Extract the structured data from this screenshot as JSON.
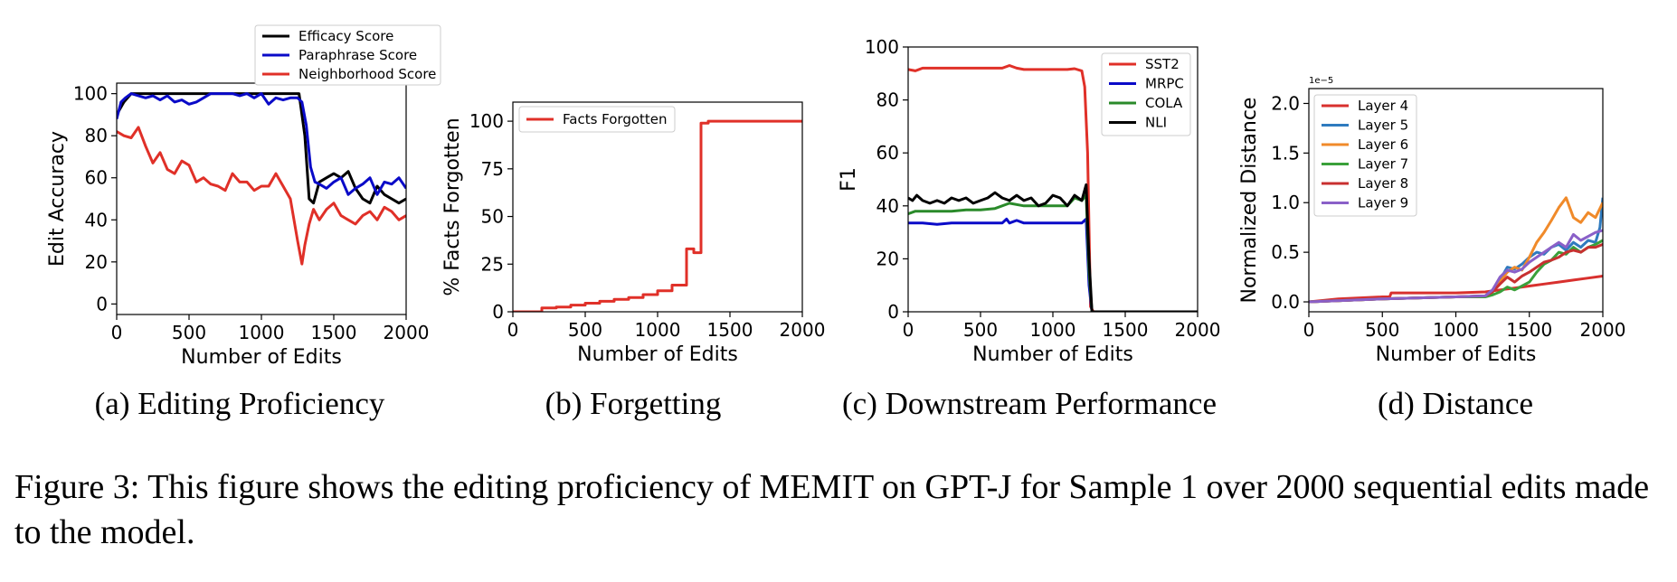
{
  "caption": "Figure 3: This figure shows the editing proficiency of MEMIT on GPT-J for Sample 1 over 2000 sequential edits made to the model.",
  "chart_data": [
    {
      "type": "line",
      "subcaption": "(a) Editing Proficiency",
      "xlabel": "Number of Edits",
      "ylabel": "Edit Accuracy",
      "xlim": [
        0,
        2000
      ],
      "ylim": [
        -5,
        105
      ],
      "xticks": [
        0,
        500,
        1000,
        1500,
        2000
      ],
      "yticks": [
        0,
        20,
        40,
        60,
        80,
        100
      ],
      "legend_position": "top-right (outside, above plot)",
      "legend": [
        "Efficacy Score",
        "Paraphrase Score",
        "Neighborhood Score"
      ],
      "colors": {
        "Efficacy Score": "#000000",
        "Paraphrase Score": "#0a0ac8",
        "Neighborhood Score": "#e03028"
      },
      "series": [
        {
          "name": "Efficacy Score",
          "color": "#000000",
          "x": [
            0,
            50,
            100,
            200,
            300,
            400,
            500,
            600,
            700,
            800,
            900,
            1000,
            1100,
            1200,
            1260,
            1300,
            1330,
            1360,
            1400,
            1450,
            1500,
            1550,
            1600,
            1650,
            1700,
            1750,
            1800,
            1850,
            1900,
            1950,
            2000
          ],
          "y": [
            90,
            96,
            100,
            100,
            100,
            100,
            100,
            100,
            100,
            100,
            100,
            100,
            100,
            100,
            100,
            80,
            50,
            48,
            58,
            60,
            62,
            60,
            63,
            55,
            50,
            48,
            56,
            52,
            50,
            48,
            50
          ]
        },
        {
          "name": "Paraphrase Score",
          "color": "#0a0ac8",
          "x": [
            0,
            30,
            60,
            100,
            150,
            200,
            250,
            300,
            350,
            400,
            450,
            500,
            550,
            600,
            650,
            700,
            750,
            800,
            850,
            900,
            950,
            1000,
            1050,
            1100,
            1150,
            1200,
            1250,
            1280,
            1310,
            1340,
            1370,
            1400,
            1450,
            1500,
            1550,
            1600,
            1650,
            1700,
            1750,
            1800,
            1850,
            1900,
            1950,
            2000
          ],
          "y": [
            88,
            96,
            98,
            100,
            99,
            98,
            99,
            97,
            99,
            96,
            97,
            95,
            96,
            98,
            100,
            100,
            100,
            100,
            99,
            100,
            98,
            100,
            95,
            98,
            97,
            98,
            98,
            96,
            85,
            65,
            58,
            57,
            55,
            58,
            60,
            52,
            55,
            57,
            60,
            52,
            58,
            57,
            60,
            55
          ]
        },
        {
          "name": "Neighborhood Score",
          "color": "#e03028",
          "x": [
            0,
            50,
            100,
            150,
            200,
            250,
            300,
            350,
            400,
            450,
            500,
            550,
            600,
            650,
            700,
            750,
            800,
            850,
            900,
            950,
            1000,
            1050,
            1100,
            1150,
            1200,
            1250,
            1280,
            1300,
            1330,
            1360,
            1400,
            1450,
            1500,
            1550,
            1600,
            1650,
            1700,
            1750,
            1800,
            1850,
            1900,
            1950,
            2000
          ],
          "y": [
            82,
            80,
            79,
            84,
            75,
            67,
            72,
            64,
            62,
            68,
            66,
            58,
            60,
            57,
            56,
            54,
            62,
            58,
            58,
            54,
            56,
            56,
            62,
            56,
            50,
            30,
            19,
            28,
            38,
            45,
            40,
            45,
            48,
            42,
            40,
            38,
            42,
            44,
            40,
            46,
            44,
            40,
            42
          ]
        }
      ]
    },
    {
      "type": "line",
      "subcaption": "(b) Forgetting",
      "xlabel": "Number of Edits",
      "ylabel": "% Facts Forgotten",
      "xlim": [
        0,
        2000
      ],
      "ylim": [
        0,
        110
      ],
      "xticks": [
        0,
        500,
        1000,
        1500,
        2000
      ],
      "yticks": [
        0,
        25,
        50,
        75,
        100
      ],
      "legend_position": "top-left",
      "legend": [
        "Facts Forgotten"
      ],
      "series": [
        {
          "name": "Facts Forgotten",
          "color": "#e03028",
          "x": [
            0,
            200,
            300,
            400,
            500,
            600,
            700,
            800,
            900,
            1000,
            1100,
            1200,
            1250,
            1300,
            1350,
            2000
          ],
          "y": [
            0,
            2,
            2.5,
            3.5,
            4.5,
            5.5,
            6.5,
            7.5,
            9,
            11,
            14,
            33,
            31,
            99,
            100,
            100
          ],
          "step": true
        }
      ]
    },
    {
      "type": "line",
      "subcaption": "(c) Downstream Performance",
      "xlabel": "Number of Edits",
      "ylabel": "F1",
      "xlim": [
        0,
        2000
      ],
      "ylim": [
        0,
        100
      ],
      "xticks": [
        0,
        500,
        1000,
        1500,
        2000
      ],
      "yticks": [
        0,
        20,
        40,
        60,
        80,
        100
      ],
      "legend_position": "top-right",
      "legend": [
        "SST2",
        "MRPC",
        "COLA",
        "NLI"
      ],
      "series": [
        {
          "name": "SST2",
          "color": "#e03028",
          "x": [
            0,
            50,
            100,
            200,
            300,
            400,
            500,
            600,
            650,
            700,
            750,
            800,
            900,
            1000,
            1100,
            1150,
            1200,
            1220,
            1240,
            1260,
            1280,
            1300,
            2000
          ],
          "y": [
            91.5,
            91,
            92,
            92,
            92,
            92,
            92,
            92,
            92,
            93,
            92,
            91.5,
            91.5,
            91.5,
            91.5,
            91.8,
            91,
            85,
            60,
            2,
            0,
            0,
            0
          ]
        },
        {
          "name": "MRPC",
          "color": "#0a0ac8",
          "x": [
            0,
            100,
            200,
            300,
            400,
            500,
            600,
            650,
            680,
            700,
            750,
            800,
            900,
            1000,
            1100,
            1200,
            1230,
            1250,
            1270,
            1300,
            2000
          ],
          "y": [
            33.5,
            33.5,
            33,
            33.5,
            33.5,
            33.5,
            33.5,
            33.5,
            35,
            33.5,
            34.5,
            33.5,
            33.5,
            33.5,
            33.5,
            33.5,
            35,
            10,
            0,
            0,
            0
          ]
        },
        {
          "name": "COLA",
          "color": "#2a8a2a",
          "x": [
            0,
            50,
            100,
            200,
            300,
            400,
            500,
            600,
            700,
            800,
            900,
            1000,
            1050,
            1100,
            1150,
            1200,
            1230,
            1250,
            1270,
            1300,
            2000
          ],
          "y": [
            37,
            38,
            38,
            38,
            38,
            38.5,
            38.5,
            39,
            41,
            40,
            40,
            40,
            40,
            40,
            43,
            42,
            44,
            15,
            0,
            0,
            0
          ]
        },
        {
          "name": "NLI",
          "color": "#000000",
          "x": [
            0,
            30,
            60,
            100,
            150,
            200,
            250,
            300,
            350,
            400,
            450,
            500,
            550,
            600,
            650,
            700,
            750,
            800,
            850,
            900,
            950,
            1000,
            1050,
            1100,
            1150,
            1200,
            1230,
            1250,
            1270,
            1300,
            2000
          ],
          "y": [
            43,
            42,
            44,
            42,
            41,
            42,
            41,
            43,
            42,
            43,
            41,
            42,
            43,
            45,
            43,
            42,
            44,
            42,
            43,
            40,
            41,
            44,
            43,
            40,
            44,
            42,
            48,
            20,
            0,
            0,
            0
          ]
        }
      ]
    },
    {
      "type": "line",
      "subcaption": "(d) Distance",
      "xlabel": "Number of Edits",
      "ylabel": "Normalized Distance",
      "offset_text": "1e−5",
      "xlim": [
        0,
        2000
      ],
      "ylim": [
        -0.1,
        2.15
      ],
      "xticks": [
        0,
        500,
        1000,
        1500,
        2000
      ],
      "yticks": [
        0.0,
        0.5,
        1.0,
        1.5,
        2.0
      ],
      "legend_position": "top-left",
      "legend": [
        "Layer 4",
        "Layer 5",
        "Layer 6",
        "Layer 7",
        "Layer 8",
        "Layer 9"
      ],
      "series": [
        {
          "name": "Layer 4",
          "color": "#d8302e",
          "x": [
            0,
            200,
            500,
            550,
            560,
            800,
            900,
            1000,
            1200,
            1300,
            1400,
            1500,
            1600,
            1700,
            1800,
            1900,
            2000
          ],
          "y": [
            0.0,
            0.03,
            0.05,
            0.05,
            0.09,
            0.09,
            0.09,
            0.09,
            0.1,
            0.12,
            0.14,
            0.16,
            0.18,
            0.2,
            0.22,
            0.24,
            0.26
          ]
        },
        {
          "name": "Layer 5",
          "color": "#2f7bbf",
          "x": [
            0,
            500,
            1000,
            1200,
            1250,
            1300,
            1350,
            1400,
            1450,
            1500,
            1550,
            1600,
            1650,
            1700,
            1750,
            1800,
            1850,
            1900,
            1950,
            1980,
            2000
          ],
          "y": [
            0.0,
            0.03,
            0.05,
            0.06,
            0.12,
            0.22,
            0.35,
            0.33,
            0.38,
            0.45,
            0.5,
            0.48,
            0.55,
            0.58,
            0.52,
            0.6,
            0.55,
            0.62,
            0.6,
            0.75,
            1.05
          ]
        },
        {
          "name": "Layer 6",
          "color": "#f08a2a",
          "x": [
            0,
            500,
            1000,
            1200,
            1250,
            1300,
            1350,
            1400,
            1450,
            1500,
            1550,
            1600,
            1650,
            1700,
            1750,
            1800,
            1850,
            1900,
            1950,
            2000
          ],
          "y": [
            0.0,
            0.03,
            0.05,
            0.06,
            0.1,
            0.2,
            0.3,
            0.35,
            0.32,
            0.45,
            0.6,
            0.7,
            0.82,
            0.95,
            1.05,
            0.85,
            0.8,
            0.9,
            0.85,
            1.0
          ]
        },
        {
          "name": "Layer 7",
          "color": "#3aa03a",
          "x": [
            0,
            500,
            1000,
            1200,
            1250,
            1300,
            1350,
            1400,
            1450,
            1500,
            1550,
            1600,
            1650,
            1700,
            1750,
            1800,
            1850,
            1900,
            1950,
            2000
          ],
          "y": [
            0.0,
            0.03,
            0.05,
            0.05,
            0.07,
            0.1,
            0.15,
            0.12,
            0.16,
            0.2,
            0.3,
            0.38,
            0.42,
            0.5,
            0.48,
            0.55,
            0.5,
            0.55,
            0.58,
            0.62
          ]
        },
        {
          "name": "Layer 8",
          "color": "#c83030",
          "x": [
            0,
            500,
            1000,
            1200,
            1250,
            1300,
            1350,
            1400,
            1450,
            1500,
            1550,
            1600,
            1650,
            1700,
            1750,
            1800,
            1850,
            1900,
            1950,
            2000
          ],
          "y": [
            0.0,
            0.03,
            0.05,
            0.06,
            0.1,
            0.18,
            0.25,
            0.2,
            0.26,
            0.3,
            0.35,
            0.4,
            0.42,
            0.45,
            0.5,
            0.52,
            0.5,
            0.55,
            0.55,
            0.58
          ]
        },
        {
          "name": "Layer 9",
          "color": "#8a60c8",
          "x": [
            0,
            500,
            1000,
            1200,
            1250,
            1300,
            1350,
            1400,
            1450,
            1500,
            1550,
            1600,
            1650,
            1700,
            1750,
            1800,
            1850,
            1900,
            1950,
            2000
          ],
          "y": [
            0.0,
            0.03,
            0.05,
            0.06,
            0.12,
            0.25,
            0.32,
            0.3,
            0.33,
            0.4,
            0.45,
            0.5,
            0.55,
            0.6,
            0.55,
            0.68,
            0.62,
            0.66,
            0.7,
            0.72
          ]
        }
      ]
    }
  ]
}
